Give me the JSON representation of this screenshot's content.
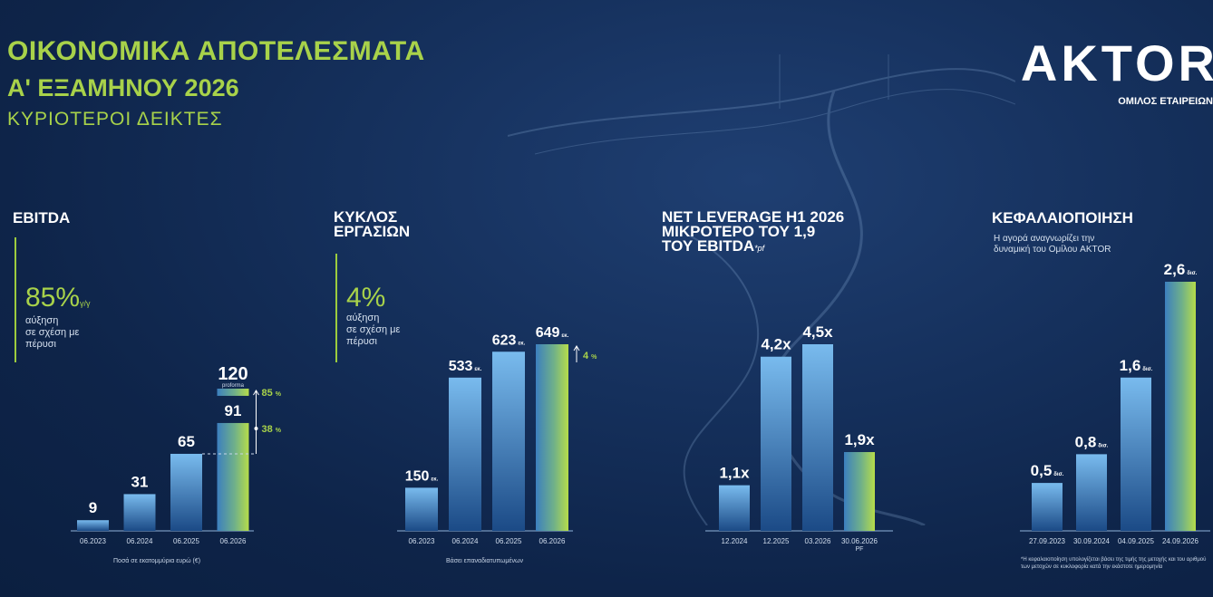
{
  "header": {
    "title_line1": "ΟΙΚΟΝΟΜΙΚΑ ΑΠΟΤΕΛΕΣΜΑΤΑ",
    "title_line2": "Α' ΕΞΑΜΗΝΟΥ 2026",
    "subtitle": "ΚΥΡΙΟΤΕΡΟΙ ΔΕΙΚΤΕΣ"
  },
  "logo": {
    "text": "AKTOR",
    "subtitle": "ΟΜΙΛΟΣ ΕΤΑΙΡΕΙΩΝ"
  },
  "colors": {
    "accent": "#a8d24a",
    "bar_top": "#74b6ea",
    "bar_bottom": "#1a4a86"
  },
  "ebitda": {
    "title": "EBITDA",
    "growth": "85%",
    "growth_suffix": "γ/γ",
    "growth_desc": [
      "αύξηση",
      "σε σχέση με",
      "πέρυσι"
    ],
    "note": "Ποσά σε εκατομμύρια ευρώ (€)",
    "proforma_label": "proforma",
    "arrow_top_label": "85",
    "arrow_mid_label": "38",
    "percent_sign": "%"
  },
  "turnover": {
    "title_line1": "ΚΥΚΛΟΣ",
    "title_line2": "ΕΡΓΑΣΙΩΝ",
    "growth": "4%",
    "growth_desc": [
      "αύξηση",
      "σε σχέση με",
      "πέρυσι"
    ],
    "note": "Βάσει επαναδιατυπωμένων",
    "arrow_label": "4",
    "percent_sign": "%"
  },
  "leverage": {
    "title_line1": "NET LEVERAGE H1 2026",
    "title_line2": "ΜΙΚΡΟΤΕΡΟ ΤΟΥ 1,9",
    "title_line3": "ΤΟΥ EBITDA",
    "title_suffix": "*pf"
  },
  "capitalization": {
    "title": "ΚΕΦΑΛΑΙΟΠΟΙΗΣΗ",
    "subtitle_line1": "Η αγορά αναγνωρίζει την",
    "subtitle_line2": "δυναμική του Ομίλου AKTOR",
    "note": "*Η κεφαλαιοποίηση υπολογίζεται βάσει της τιμής της μετοχής και του αριθμού των μετοχών σε κυκλοφορία κατά την εκάστοτε ημερομηνία"
  },
  "chart_data": [
    {
      "type": "bar",
      "title": "EBITDA",
      "categories": [
        "06.2023",
        "06.2024",
        "06.2025",
        "06.2026"
      ],
      "values": [
        9,
        31,
        65,
        91
      ],
      "stacked_top": {
        "category": "06.2026",
        "value": 120,
        "label": "proforma"
      },
      "value_labels": [
        "9",
        "31",
        "65",
        "91"
      ],
      "value_units": [
        "",
        "",
        "",
        ""
      ],
      "annotations": [
        "85 %",
        "38 %"
      ]
    },
    {
      "type": "bar",
      "title": "ΚΥΚΛΟΣ ΕΡΓΑΣΙΩΝ",
      "categories": [
        "06.2023",
        "06.2024",
        "06.2025",
        "06.2026"
      ],
      "values": [
        150,
        533,
        623,
        649
      ],
      "value_labels": [
        "150",
        "533",
        "623",
        "649"
      ],
      "value_units": [
        "εκ.",
        "εκ.",
        "εκ.",
        "εκ."
      ],
      "annotations": [
        "4 %"
      ]
    },
    {
      "type": "bar",
      "title": "NET LEVERAGE H1 2026",
      "categories": [
        "12.2024",
        "12.2025",
        "03.2026",
        "30.06.2026"
      ],
      "category_sublabels": [
        "",
        "",
        "",
        "PF"
      ],
      "values": [
        1.1,
        4.2,
        4.5,
        1.9
      ],
      "value_labels": [
        "1,1x",
        "4,2x",
        "4,5x",
        "1,9x"
      ],
      "value_units": [
        "",
        "",
        "",
        ""
      ]
    },
    {
      "type": "bar",
      "title": "ΚΕΦΑΛΑΙΟΠΟΙΗΣΗ",
      "categories": [
        "27.09.2023",
        "30.09.2024",
        "04.09.2025",
        "24.09.2026"
      ],
      "values": [
        0.5,
        0.8,
        1.6,
        2.6
      ],
      "value_labels": [
        "0,5",
        "0,8",
        "1,6",
        "2,6"
      ],
      "value_units": [
        "δισ.",
        "δισ.",
        "δισ.",
        "δισ."
      ]
    }
  ]
}
